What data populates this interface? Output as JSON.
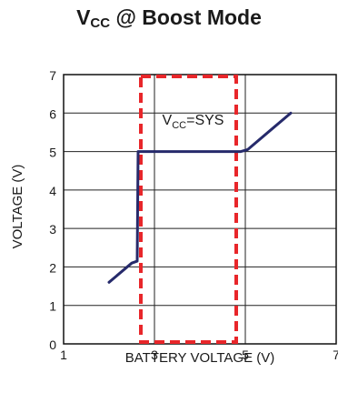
{
  "chart_data": {
    "type": "line",
    "title": {
      "main": "V",
      "sub": "CC",
      "rest": " @ Boost Mode"
    },
    "xlabel": "BATTERY VOLTAGE (V)",
    "ylabel": "VOLTAGE (V)",
    "xlim": [
      1,
      7
    ],
    "ylim": [
      0,
      7
    ],
    "xticks": [
      1,
      3,
      5,
      7
    ],
    "yticks": [
      0,
      1,
      2,
      3,
      4,
      5,
      6,
      7
    ],
    "grid": true,
    "series": [
      {
        "points": [
          [
            2.0,
            1.6
          ],
          [
            2.5,
            2.1
          ],
          [
            2.62,
            2.15
          ],
          [
            2.64,
            5.0
          ],
          [
            4.9,
            5.0
          ],
          [
            5.05,
            5.05
          ],
          [
            5.6,
            5.6
          ],
          [
            6.0,
            6.0
          ]
        ],
        "color": "#262a6b"
      }
    ],
    "highlight_box": {
      "x0": 2.7,
      "x1": 4.8,
      "y0": 0,
      "y1": 7,
      "color": "#e8262a"
    },
    "annotation": {
      "main": "V",
      "sub": "CC",
      "rest": "=SYS",
      "x": 3.85,
      "y": 5.6
    }
  }
}
